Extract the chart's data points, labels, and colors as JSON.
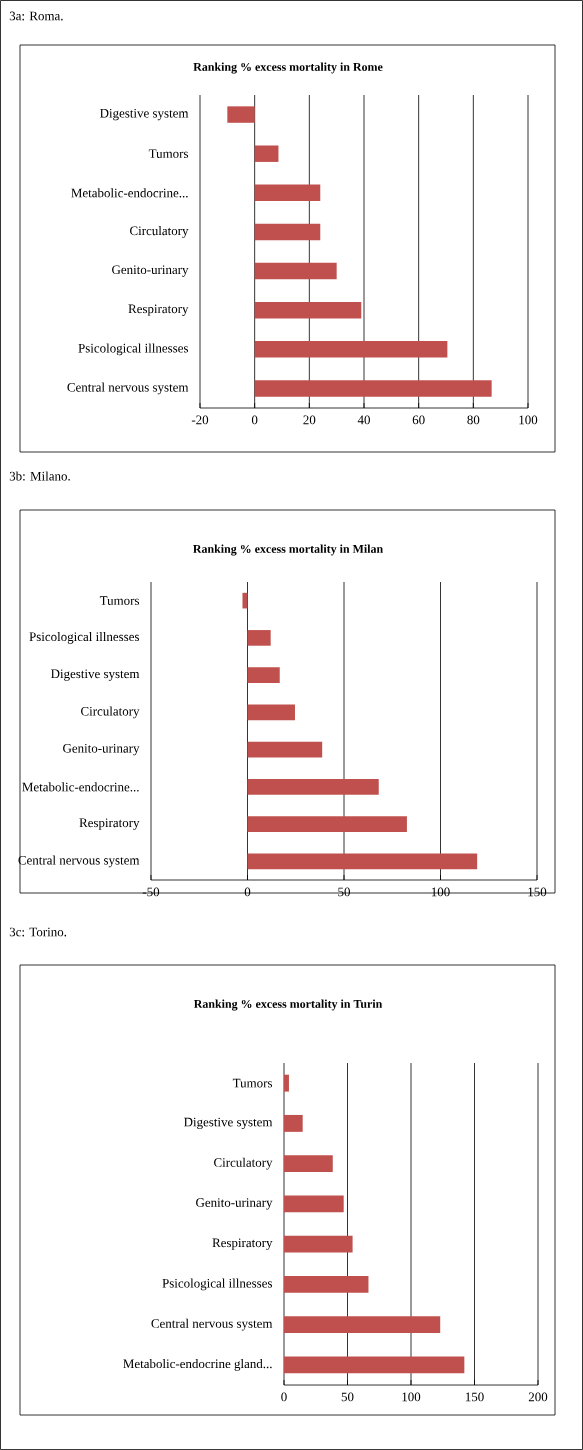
{
  "chart_data": [
    {
      "type": "bar",
      "orientation": "horizontal",
      "title": "Ranking % excess mortality in Rome",
      "annotations": [
        "3a: Roma."
      ],
      "categories": [
        "Digestive system",
        "Tumors",
        "Metabolic-endocrine...",
        "Circulatory",
        "Genito-urinary",
        "Respiratory",
        "Psicological illnesses",
        "Central nervous system"
      ],
      "values": [
        -10,
        8.7,
        24,
        24,
        30,
        39,
        70.5,
        86.7
      ],
      "color": "#c0504d",
      "xlim": [
        -20,
        100
      ],
      "xticks": [
        -20,
        0,
        20,
        40,
        60,
        80,
        100
      ],
      "grid": "x"
    },
    {
      "type": "bar",
      "orientation": "horizontal",
      "title": "Ranking % excess mortality in Milan",
      "annotations": [
        "3b: Milano."
      ],
      "categories": [
        "Tumors",
        "Psicological illnesses",
        "Digestive system",
        "Circulatory",
        "Genito-urinary",
        "Metabolic-endocrine...",
        "Respiratory",
        "Central nervous system"
      ],
      "values": [
        -2.6,
        12,
        16.7,
        24.6,
        38.7,
        68,
        82.6,
        119
      ],
      "color": "#c0504d",
      "xlim": [
        -50,
        150
      ],
      "xticks": [
        -50,
        0,
        50,
        100,
        150
      ],
      "grid": "x"
    },
    {
      "type": "bar",
      "orientation": "horizontal",
      "title": "Ranking % excess mortality in Turin",
      "annotations": [
        "3c: Torino."
      ],
      "categories": [
        "Tumors",
        "Digestive system",
        "Circulatory",
        "Genito-urinary",
        "Respiratory",
        "Psicological illnesses",
        "Central nervous system",
        "Metabolic-endocrine gland..."
      ],
      "values": [
        3.9,
        14.7,
        38.4,
        47,
        54,
        66.5,
        123,
        142
      ],
      "color": "#c0504d",
      "xlim": [
        0,
        200
      ],
      "xticks": [
        0,
        50,
        100,
        150,
        200
      ],
      "grid": "x"
    }
  ]
}
